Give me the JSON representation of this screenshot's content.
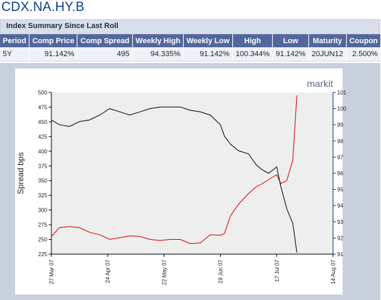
{
  "title": "CDX.NA.HY.B",
  "subtitle": "Index Summary Since Last Roll",
  "table": {
    "headers": [
      "Period",
      "Comp Price",
      "Comp Spread",
      "Weekly High",
      "Weekly Low",
      "High",
      "Low",
      "Maturity",
      "Coupon"
    ],
    "rows": [
      [
        "5Y",
        "91.142%",
        "495",
        "94.335%",
        "91.142%",
        "100.344%",
        "91.142%",
        "20JUN12",
        "2.500%"
      ]
    ]
  },
  "brand": "markit",
  "colors": {
    "spread": "#d40000",
    "price": "#000000",
    "axis_left": "#000000",
    "axis_right": "#0b2f8a",
    "header_bg": "#52679d"
  },
  "chart_data": {
    "type": "line",
    "ylabel": "Spread bps",
    "ylim": [
      225,
      500
    ],
    "y2lim": [
      91,
      101
    ],
    "xlim": [
      "2007-03-27",
      "2007-08-14"
    ],
    "y_ticks": [
      "225",
      "250",
      "275",
      "300",
      "325",
      "350",
      "375",
      "400",
      "425",
      "450",
      "475",
      "500"
    ],
    "y2_ticks": [
      "91",
      "92",
      "93",
      "94",
      "95",
      "96",
      "97",
      "98",
      "99",
      "100",
      "101"
    ],
    "x_ticks": [
      "27 Mar 07",
      "24 Apr 07",
      "22 May 07",
      "19 Jun 07",
      "17 Jul 07",
      "14 Aug 07"
    ],
    "grid": false,
    "series": [
      {
        "axis": "left",
        "color": "#d40000",
        "x": [
          "2007-03-27",
          "2007-03-31",
          "2007-04-05",
          "2007-04-10",
          "2007-04-15",
          "2007-04-20",
          "2007-04-25",
          "2007-04-30",
          "2007-05-05",
          "2007-05-10",
          "2007-05-15",
          "2007-05-20",
          "2007-05-25",
          "2007-05-30",
          "2007-06-04",
          "2007-06-09",
          "2007-06-14",
          "2007-06-19",
          "2007-06-21",
          "2007-06-24",
          "2007-06-28",
          "2007-07-03",
          "2007-07-07",
          "2007-07-10",
          "2007-07-13",
          "2007-07-17",
          "2007-07-19",
          "2007-07-22",
          "2007-07-25",
          "2007-07-27"
        ],
        "y": [
          255,
          270,
          272,
          270,
          262,
          258,
          250,
          253,
          256,
          255,
          250,
          248,
          250,
          250,
          243,
          244,
          258,
          257,
          260,
          290,
          310,
          328,
          340,
          345,
          352,
          360,
          345,
          350,
          385,
          495
        ]
      },
      {
        "axis": "right",
        "color": "#000000",
        "x": [
          "2007-03-27",
          "2007-03-31",
          "2007-04-05",
          "2007-04-10",
          "2007-04-15",
          "2007-04-20",
          "2007-04-25",
          "2007-04-30",
          "2007-05-05",
          "2007-05-10",
          "2007-05-15",
          "2007-05-20",
          "2007-05-25",
          "2007-05-30",
          "2007-06-04",
          "2007-06-09",
          "2007-06-14",
          "2007-06-19",
          "2007-06-21",
          "2007-06-24",
          "2007-06-28",
          "2007-07-03",
          "2007-07-07",
          "2007-07-10",
          "2007-07-13",
          "2007-07-17",
          "2007-07-19",
          "2007-07-22",
          "2007-07-25",
          "2007-07-27"
        ],
        "y": [
          99.3,
          99.0,
          98.9,
          99.2,
          99.3,
          99.6,
          100.0,
          99.8,
          99.6,
          99.8,
          100.0,
          100.1,
          100.1,
          100.1,
          99.9,
          99.8,
          99.6,
          99.0,
          98.3,
          97.8,
          97.4,
          97.2,
          96.5,
          96.2,
          96.0,
          96.4,
          95.2,
          93.8,
          92.9,
          91.1
        ]
      }
    ]
  }
}
